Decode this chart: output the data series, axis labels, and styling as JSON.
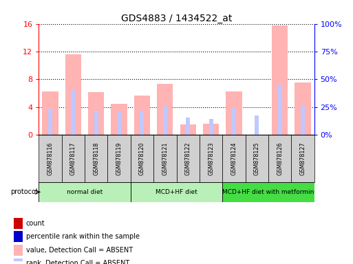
{
  "title": "GDS4883 / 1434522_at",
  "samples": [
    "GSM878116",
    "GSM878117",
    "GSM878118",
    "GSM878119",
    "GSM878120",
    "GSM878121",
    "GSM878122",
    "GSM878123",
    "GSM878124",
    "GSM878125",
    "GSM878126",
    "GSM878127"
  ],
  "value_absent": [
    6.2,
    11.6,
    6.1,
    4.4,
    5.6,
    7.3,
    1.5,
    1.6,
    6.2,
    0.0,
    15.8,
    7.5
  ],
  "rank_absent": [
    3.8,
    6.4,
    3.5,
    3.3,
    3.5,
    4.2,
    2.5,
    2.3,
    4.0,
    2.8,
    7.2,
    4.2
  ],
  "ylim_left": [
    0,
    16
  ],
  "ylim_right": [
    0,
    100
  ],
  "yticks_left": [
    0,
    4,
    8,
    12,
    16
  ],
  "ytick_labels_right": [
    "0%",
    "25%",
    "50%",
    "75%",
    "100%"
  ],
  "proto_defs": [
    {
      "start": 0,
      "end": 3,
      "label": "normal diet",
      "color": "#b8f0b8"
    },
    {
      "start": 4,
      "end": 7,
      "label": "MCD+HF diet",
      "color": "#b8f0b8"
    },
    {
      "start": 8,
      "end": 11,
      "label": "MCD+HF diet with metformin",
      "color": "#44dd44"
    }
  ],
  "color_value_absent": "#ffb3b3",
  "color_rank_absent": "#c0c8ff",
  "color_count": "#cc0000",
  "color_percentile": "#0000cc",
  "legend_items": [
    {
      "label": "count",
      "color": "#cc0000"
    },
    {
      "label": "percentile rank within the sample",
      "color": "#0000cc"
    },
    {
      "label": "value, Detection Call = ABSENT",
      "color": "#ffb3b3"
    },
    {
      "label": "rank, Detection Call = ABSENT",
      "color": "#c0c8ff"
    }
  ],
  "pink_bar_width": 0.7,
  "blue_bar_width": 0.18
}
